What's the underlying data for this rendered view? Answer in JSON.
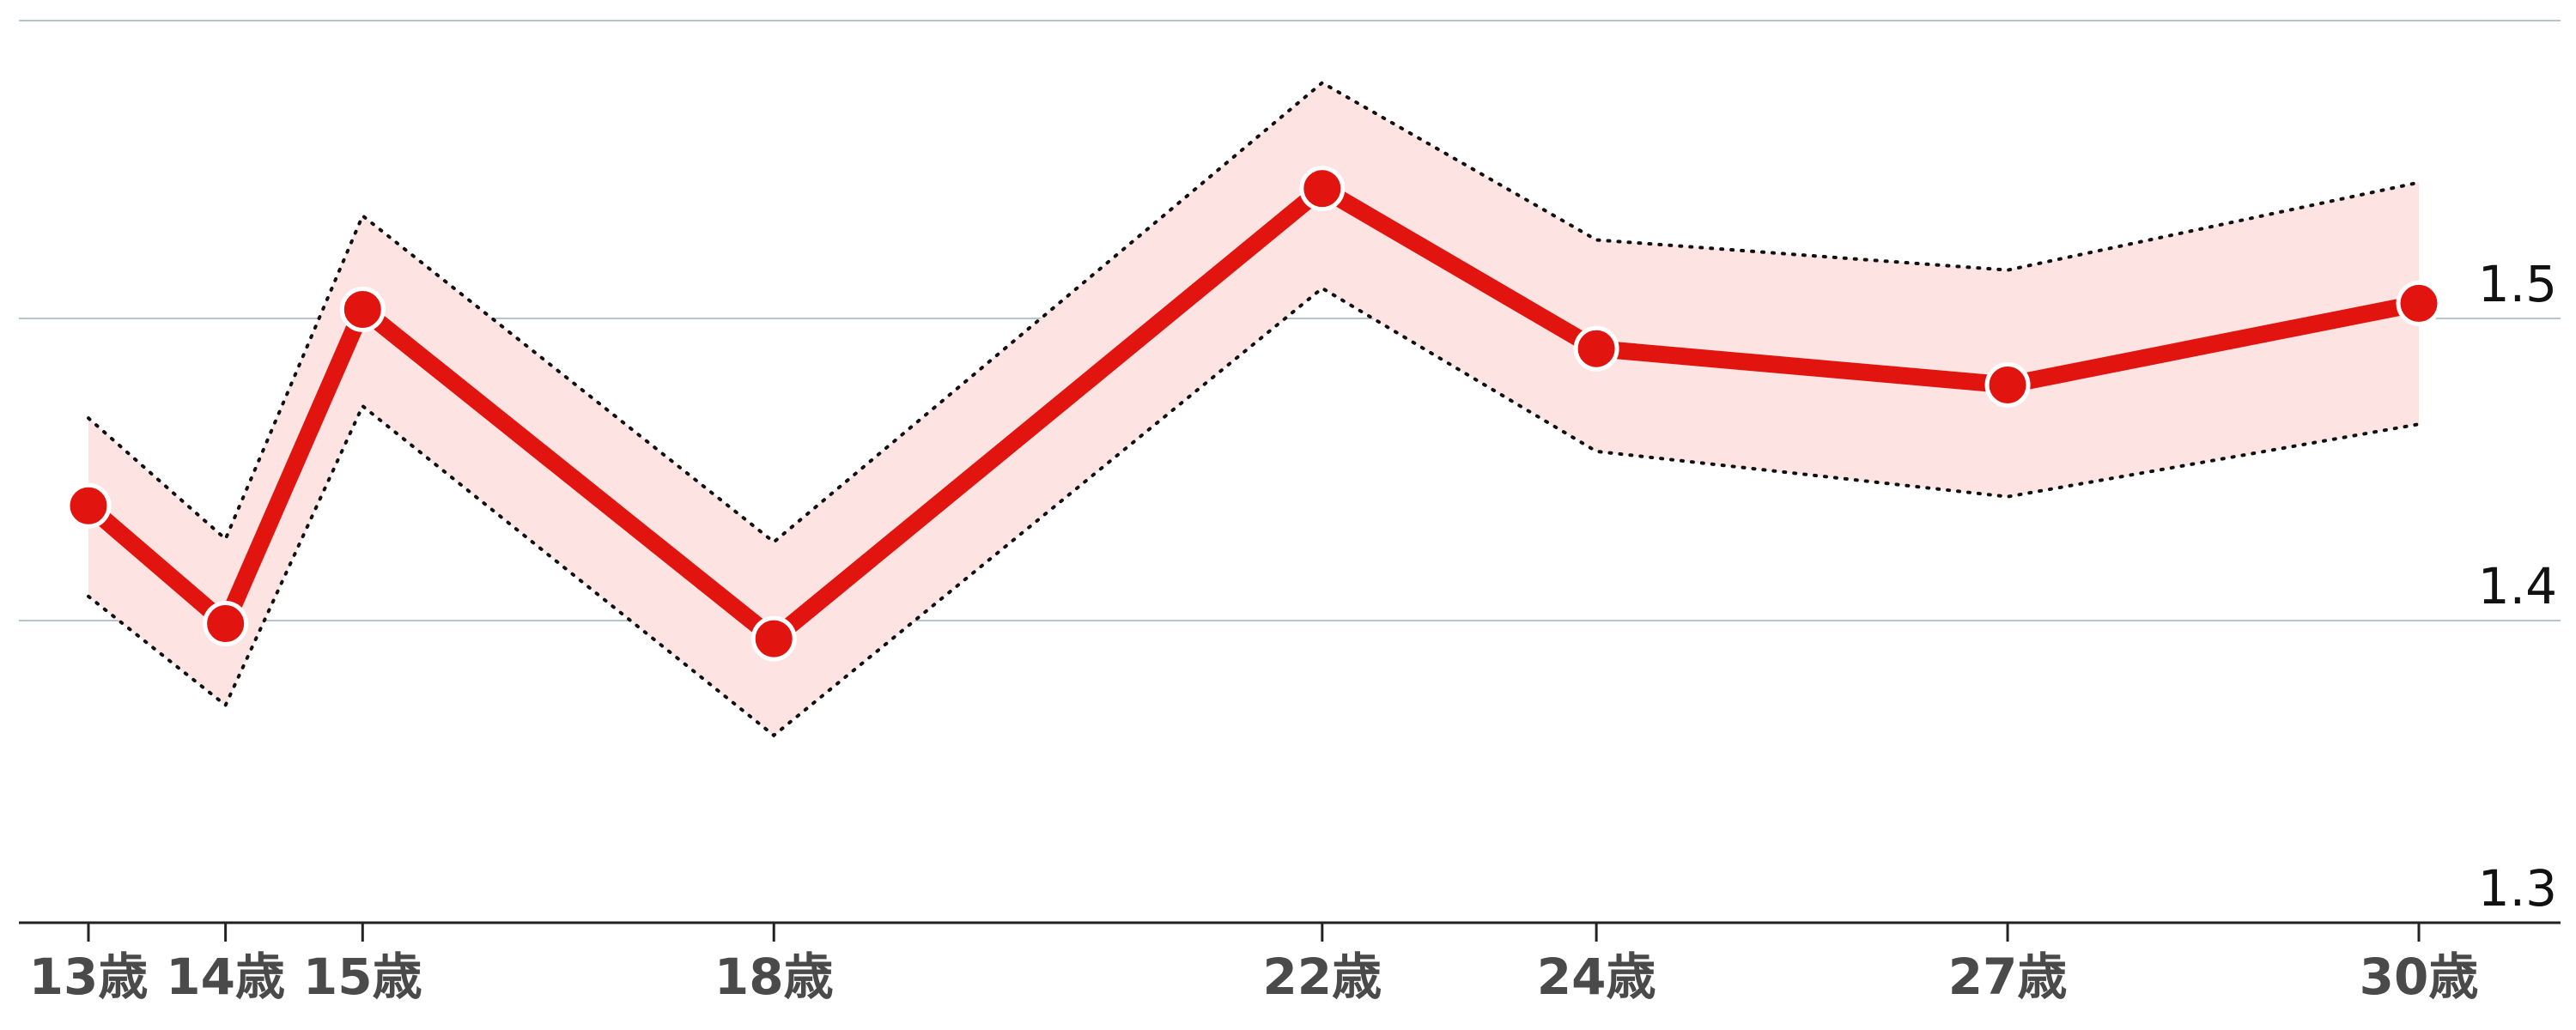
{
  "chart_data": {
    "type": "line",
    "x": [
      13,
      14,
      15,
      18,
      22,
      24,
      27,
      30
    ],
    "categories": [
      "13歳",
      "14歳",
      "15歳",
      "18歳",
      "22歳",
      "24歳",
      "27歳",
      "30歳"
    ],
    "series": [
      {
        "values": [
          1.438,
          1.399,
          1.503,
          1.394,
          1.543,
          1.49,
          1.478,
          1.505
        ],
        "lower": [
          1.408,
          1.372,
          1.471,
          1.362,
          1.51,
          1.456,
          1.441,
          1.465
        ],
        "upper": [
          1.467,
          1.427,
          1.534,
          1.426,
          1.578,
          1.526,
          1.516,
          1.545
        ]
      }
    ],
    "y_ticks": [
      {
        "value": 1.3,
        "label": "1.3"
      },
      {
        "value": 1.4,
        "label": "1.4"
      },
      {
        "value": 1.5,
        "label": "1.5"
      }
    ],
    "ylim": [
      1.3,
      1.6
    ],
    "xlim": [
      13,
      30
    ],
    "grid": true,
    "y_axis_side": "right",
    "colors": {
      "line": "#e2140f",
      "band": "#fde4e3",
      "bounds": "#111111",
      "grid": "#b8c4cc",
      "axis": "#222222",
      "x_labels": "#4a4a4a"
    }
  }
}
